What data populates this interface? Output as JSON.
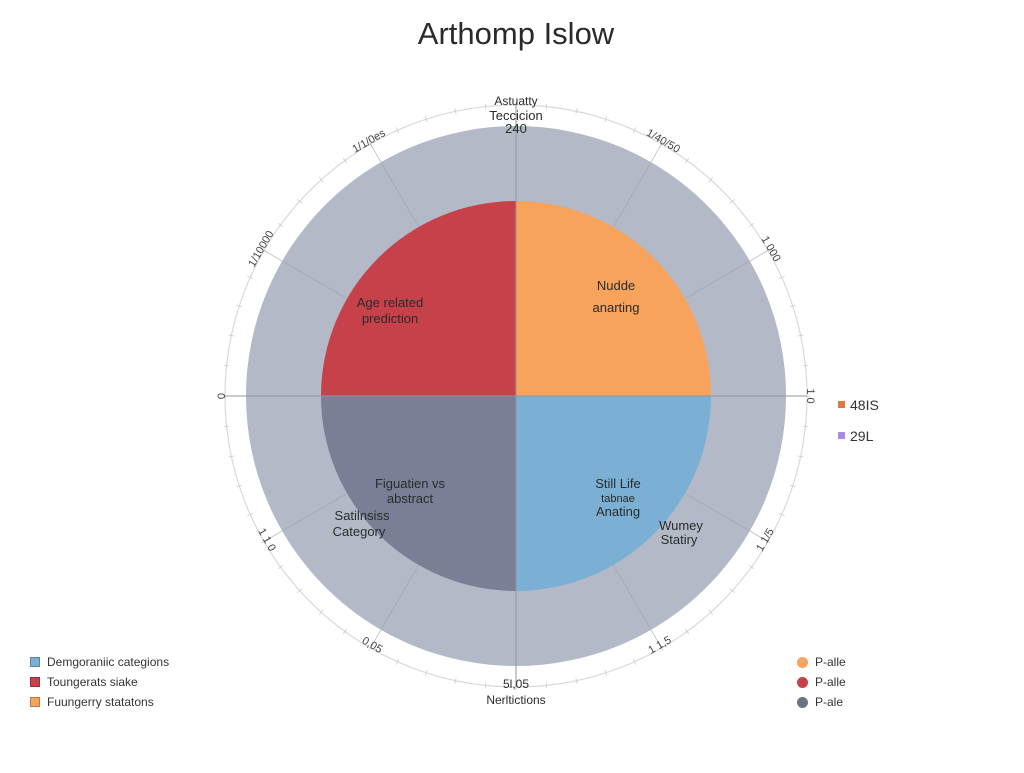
{
  "chart_data": {
    "type": "pie",
    "title": "Arthomp Islow",
    "categories": [
      "Nudde anarting",
      "Still Life tabnae Anating",
      "Figuatien vs abstract",
      "Age related prediction"
    ],
    "values": [
      25,
      25,
      25,
      25
    ],
    "colors": [
      "#f7a35c",
      "#7bafd4",
      "#7a7f95",
      "#c6414a"
    ],
    "outer_ring_color": "#b3b9c6",
    "rim_color": "#d6d9de",
    "grid": false,
    "legend_position": "bottom",
    "annotations": {
      "top": [
        "Astuatty",
        "Teccicion",
        "240"
      ],
      "bottom": [
        "5l,05",
        "Nerltictions"
      ],
      "lower_left": [
        "Satilnsiss",
        "Category"
      ],
      "lower_right": [
        "Wumey",
        "Statiry"
      ]
    },
    "rim_labels": [
      "1/1/0es",
      "1/40/50",
      "1/10000",
      "1 000",
      "0",
      "1 0",
      "1 1 0",
      "1 1/5",
      "0,05",
      "1 1,5"
    ]
  },
  "legend_left": [
    {
      "label": "Demgoraniic categions",
      "color": "#7bafd4"
    },
    {
      "label": "Toungerats siake",
      "color": "#c6414a"
    },
    {
      "label": "Fuungerry statatons",
      "color": "#f7a35c"
    }
  ],
  "legend_right": [
    {
      "label": "P-alle",
      "color": "#f7a35c"
    },
    {
      "label": "P-alle",
      "color": "#c6414a"
    },
    {
      "label": "P-ale",
      "color": "#6b7385"
    }
  ],
  "legend_mid": [
    {
      "label": "48IS",
      "color": "#e07a3c"
    },
    {
      "label": "29L",
      "color": "#a58be6"
    }
  ]
}
